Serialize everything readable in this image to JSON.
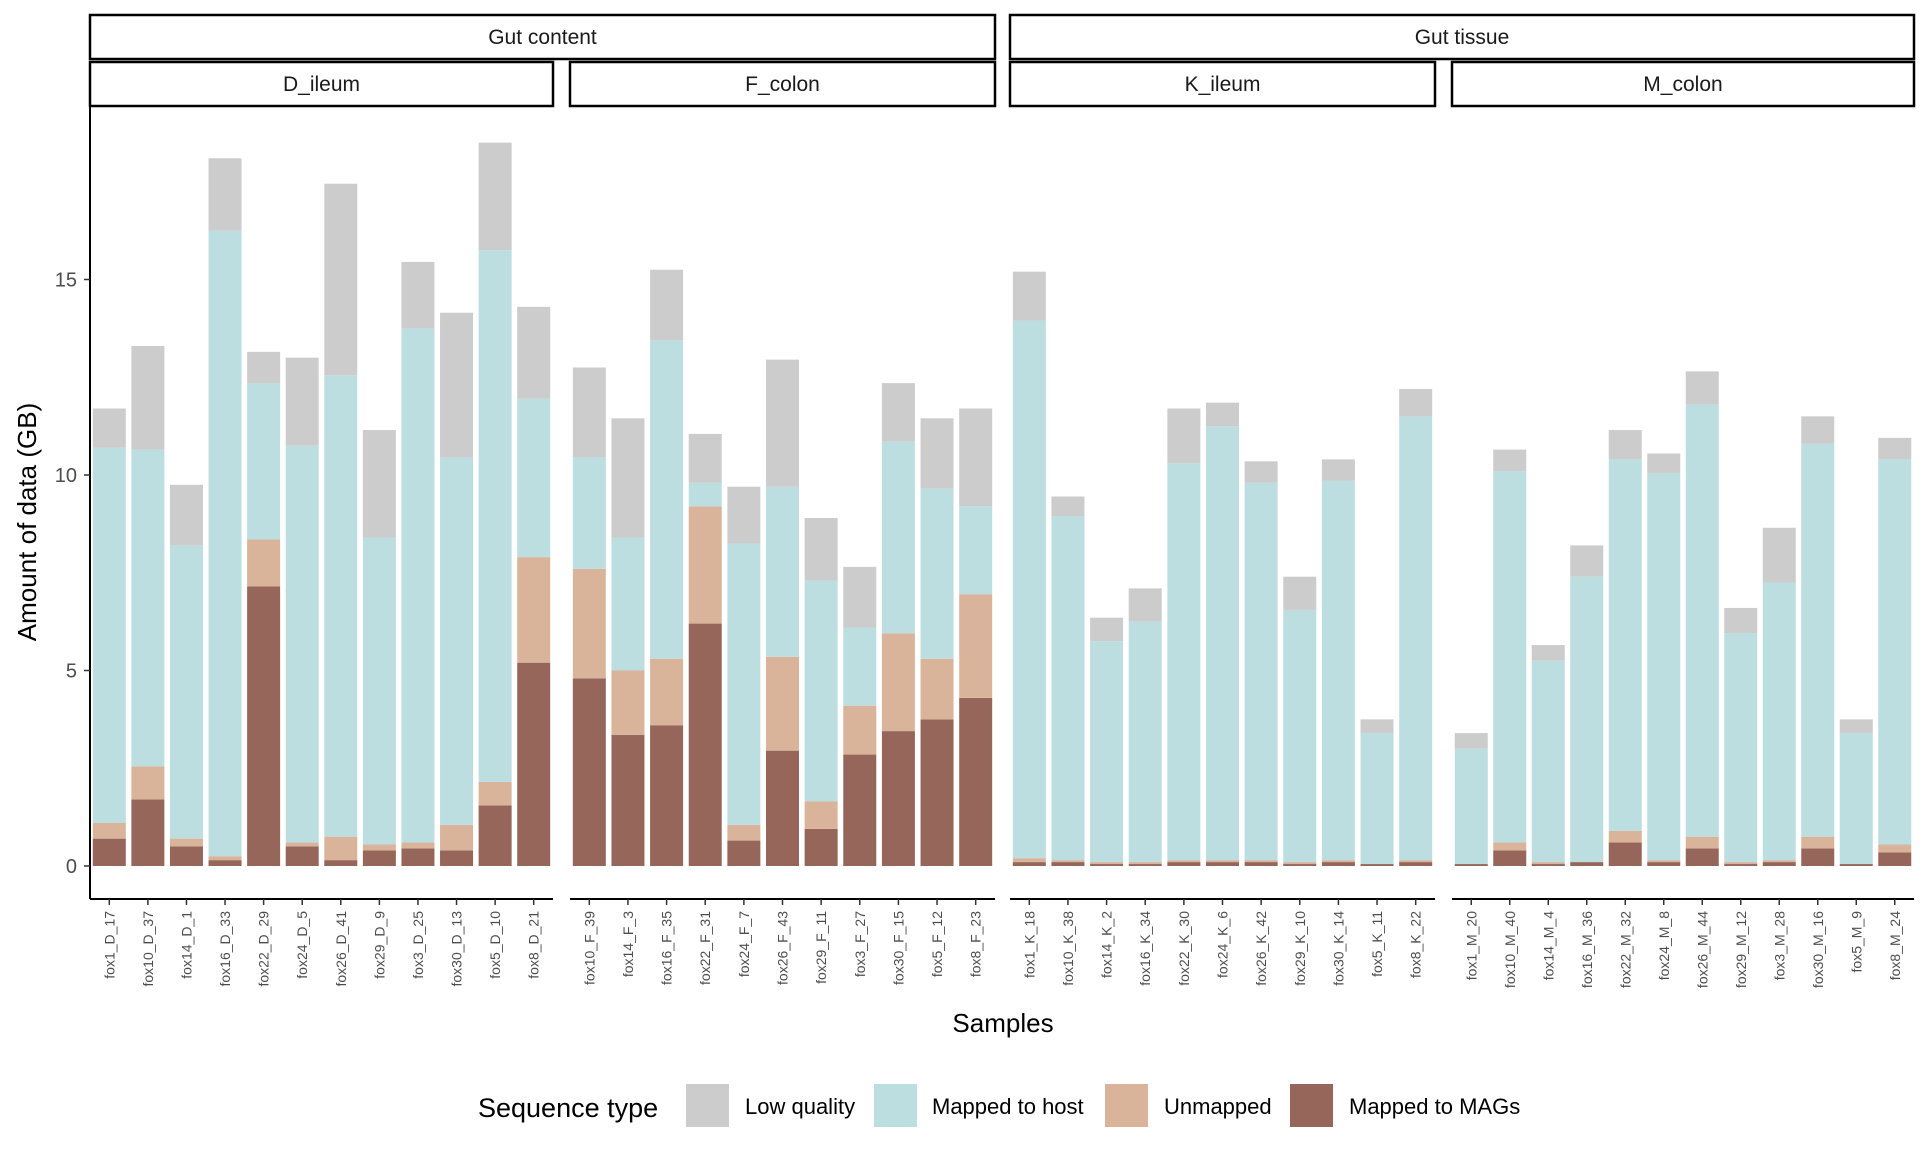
{
  "chart_data": {
    "type": "bar",
    "stacked": true,
    "xlabel": "Samples",
    "ylabel": "Amount of data (GB)",
    "ylim": [
      0,
      19.5
    ],
    "yticks": [
      0,
      5,
      10,
      15
    ],
    "grid": false,
    "legend": {
      "title": "Sequence type",
      "position": "bottom"
    },
    "series": [
      {
        "name": "Mapped to MAGs",
        "key": "mags",
        "color": "#96665B"
      },
      {
        "name": "Unmapped",
        "key": "unmapped",
        "color": "#D9B49B"
      },
      {
        "name": "Mapped to host",
        "key": "host",
        "color": "#BCDEE0"
      },
      {
        "name": "Low quality",
        "key": "lowq",
        "color": "#CCCCCC"
      }
    ],
    "legend_order": [
      "Low quality",
      "Mapped to host",
      "Unmapped",
      "Mapped to MAGs"
    ],
    "groups": [
      {
        "label": "Gut content",
        "panels": [
          {
            "label": "D_ileum",
            "samples": [
              {
                "name": "fox1_D_17",
                "mags": 0.7,
                "unmapped": 0.4,
                "host": 9.6,
                "lowq": 1.0
              },
              {
                "name": "fox10_D_37",
                "mags": 1.7,
                "unmapped": 0.85,
                "host": 8.1,
                "lowq": 2.65
              },
              {
                "name": "fox14_D_1",
                "mags": 0.5,
                "unmapped": 0.2,
                "host": 7.5,
                "lowq": 1.55
              },
              {
                "name": "fox16_D_33",
                "mags": 0.15,
                "unmapped": 0.1,
                "host": 16.0,
                "lowq": 1.85
              },
              {
                "name": "fox22_D_29",
                "mags": 7.15,
                "unmapped": 1.2,
                "host": 4.0,
                "lowq": 0.8
              },
              {
                "name": "fox24_D_5",
                "mags": 0.5,
                "unmapped": 0.1,
                "host": 10.15,
                "lowq": 2.25
              },
              {
                "name": "fox26_D_41",
                "mags": 0.15,
                "unmapped": 0.6,
                "host": 11.8,
                "lowq": 4.9
              },
              {
                "name": "fox29_D_9",
                "mags": 0.4,
                "unmapped": 0.15,
                "host": 7.85,
                "lowq": 2.75
              },
              {
                "name": "fox3_D_25",
                "mags": 0.45,
                "unmapped": 0.15,
                "host": 13.15,
                "lowq": 1.7
              },
              {
                "name": "fox30_D_13",
                "mags": 0.4,
                "unmapped": 0.65,
                "host": 9.4,
                "lowq": 3.7
              },
              {
                "name": "fox5_D_10",
                "mags": 1.55,
                "unmapped": 0.6,
                "host": 13.6,
                "lowq": 2.75
              },
              {
                "name": "fox8_D_21",
                "mags": 5.2,
                "unmapped": 2.7,
                "host": 4.05,
                "lowq": 2.35
              }
            ]
          },
          {
            "label": "F_colon",
            "samples": [
              {
                "name": "fox10_F_39",
                "mags": 4.8,
                "unmapped": 2.8,
                "host": 2.85,
                "lowq": 2.3
              },
              {
                "name": "fox14_F_3",
                "mags": 3.35,
                "unmapped": 1.65,
                "host": 3.4,
                "lowq": 3.05
              },
              {
                "name": "fox16_F_35",
                "mags": 3.6,
                "unmapped": 1.7,
                "host": 8.15,
                "lowq": 1.8
              },
              {
                "name": "fox22_F_31",
                "mags": 6.2,
                "unmapped": 3.0,
                "host": 0.6,
                "lowq": 1.25
              },
              {
                "name": "fox24_F_7",
                "mags": 0.65,
                "unmapped": 0.4,
                "host": 7.2,
                "lowq": 1.45
              },
              {
                "name": "fox26_F_43",
                "mags": 2.95,
                "unmapped": 2.4,
                "host": 4.35,
                "lowq": 3.25
              },
              {
                "name": "fox29_F_11",
                "mags": 0.95,
                "unmapped": 0.7,
                "host": 5.65,
                "lowq": 1.6
              },
              {
                "name": "fox3_F_27",
                "mags": 2.85,
                "unmapped": 1.25,
                "host": 2.0,
                "lowq": 1.55
              },
              {
                "name": "fox30_F_15",
                "mags": 3.45,
                "unmapped": 2.5,
                "host": 4.9,
                "lowq": 1.5
              },
              {
                "name": "fox5_F_12",
                "mags": 3.75,
                "unmapped": 1.55,
                "host": 4.35,
                "lowq": 1.8
              },
              {
                "name": "fox8_F_23",
                "mags": 4.3,
                "unmapped": 2.65,
                "host": 2.25,
                "lowq": 2.5
              }
            ]
          }
        ]
      },
      {
        "label": "Gut tissue",
        "panels": [
          {
            "label": "K_ileum",
            "samples": [
              {
                "name": "fox1_K_18",
                "mags": 0.1,
                "unmapped": 0.1,
                "host": 13.75,
                "lowq": 1.25
              },
              {
                "name": "fox10_K_38",
                "mags": 0.1,
                "unmapped": 0.05,
                "host": 8.8,
                "lowq": 0.5
              },
              {
                "name": "fox14_K_2",
                "mags": 0.05,
                "unmapped": 0.05,
                "host": 5.65,
                "lowq": 0.6
              },
              {
                "name": "fox16_K_34",
                "mags": 0.05,
                "unmapped": 0.05,
                "host": 6.15,
                "lowq": 0.85
              },
              {
                "name": "fox22_K_30",
                "mags": 0.1,
                "unmapped": 0.05,
                "host": 10.15,
                "lowq": 1.4
              },
              {
                "name": "fox24_K_6",
                "mags": 0.1,
                "unmapped": 0.05,
                "host": 11.1,
                "lowq": 0.6
              },
              {
                "name": "fox26_K_42",
                "mags": 0.1,
                "unmapped": 0.05,
                "host": 9.65,
                "lowq": 0.55
              },
              {
                "name": "fox29_K_10",
                "mags": 0.05,
                "unmapped": 0.05,
                "host": 6.45,
                "lowq": 0.85
              },
              {
                "name": "fox30_K_14",
                "mags": 0.1,
                "unmapped": 0.05,
                "host": 9.7,
                "lowq": 0.55
              },
              {
                "name": "fox5_K_11",
                "mags": 0.05,
                "unmapped": 0.0,
                "host": 3.35,
                "lowq": 0.35
              },
              {
                "name": "fox8_K_22",
                "mags": 0.1,
                "unmapped": 0.05,
                "host": 11.35,
                "lowq": 0.7
              }
            ]
          },
          {
            "label": "M_colon",
            "samples": [
              {
                "name": "fox1_M_20",
                "mags": 0.05,
                "unmapped": 0.0,
                "host": 2.95,
                "lowq": 0.4
              },
              {
                "name": "fox10_M_40",
                "mags": 0.4,
                "unmapped": 0.2,
                "host": 9.5,
                "lowq": 0.55
              },
              {
                "name": "fox14_M_4",
                "mags": 0.05,
                "unmapped": 0.05,
                "host": 5.15,
                "lowq": 0.4
              },
              {
                "name": "fox16_M_36",
                "mags": 0.1,
                "unmapped": 0.0,
                "host": 7.3,
                "lowq": 0.8
              },
              {
                "name": "fox22_M_32",
                "mags": 0.6,
                "unmapped": 0.3,
                "host": 9.5,
                "lowq": 0.75
              },
              {
                "name": "fox24_M_8",
                "mags": 0.1,
                "unmapped": 0.05,
                "host": 9.9,
                "lowq": 0.5
              },
              {
                "name": "fox26_M_44",
                "mags": 0.45,
                "unmapped": 0.3,
                "host": 11.05,
                "lowq": 0.85
              },
              {
                "name": "fox29_M_12",
                "mags": 0.05,
                "unmapped": 0.05,
                "host": 5.85,
                "lowq": 0.65
              },
              {
                "name": "fox3_M_28",
                "mags": 0.1,
                "unmapped": 0.05,
                "host": 7.1,
                "lowq": 1.4
              },
              {
                "name": "fox30_M_16",
                "mags": 0.45,
                "unmapped": 0.3,
                "host": 10.05,
                "lowq": 0.7
              },
              {
                "name": "fox5_M_9",
                "mags": 0.05,
                "unmapped": 0.0,
                "host": 3.35,
                "lowq": 0.35
              },
              {
                "name": "fox8_M_24",
                "mags": 0.35,
                "unmapped": 0.2,
                "host": 9.85,
                "lowq": 0.55
              }
            ]
          }
        ]
      }
    ]
  }
}
